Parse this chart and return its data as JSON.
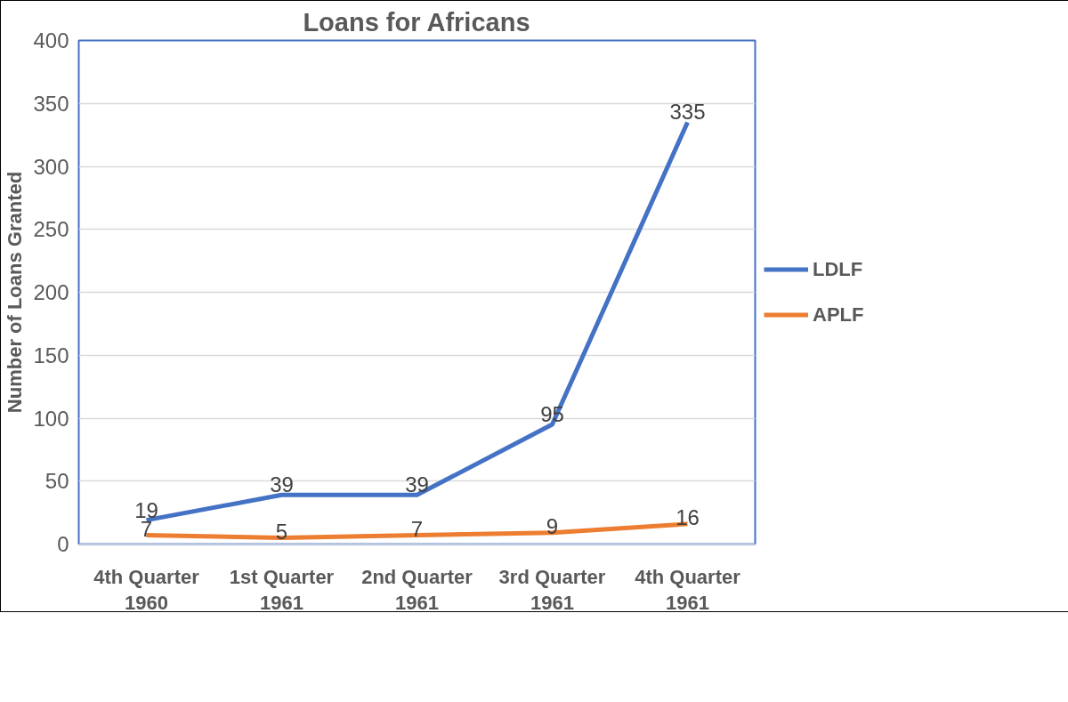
{
  "chart_data": {
    "type": "line",
    "title": "Loans for Africans",
    "ylabel": "Number of Loans Granted",
    "categories": [
      "4th Quarter 1960",
      "1st Quarter 1961",
      "2nd Quarter 1961",
      "3rd Quarter 1961",
      "4th Quarter 1961"
    ],
    "series": [
      {
        "name": "LDLF",
        "color": "#4472c4",
        "values": [
          19,
          39,
          39,
          95,
          335
        ]
      },
      {
        "name": "APLF",
        "color": "#ed7d31",
        "values": [
          7,
          5,
          7,
          9,
          16
        ]
      }
    ],
    "ylim": [
      0,
      400
    ],
    "yticks": [
      0,
      50,
      100,
      150,
      200,
      250,
      300,
      350,
      400
    ],
    "grid": "y",
    "legend": "right",
    "data_labels": true,
    "line_style": "solid"
  }
}
